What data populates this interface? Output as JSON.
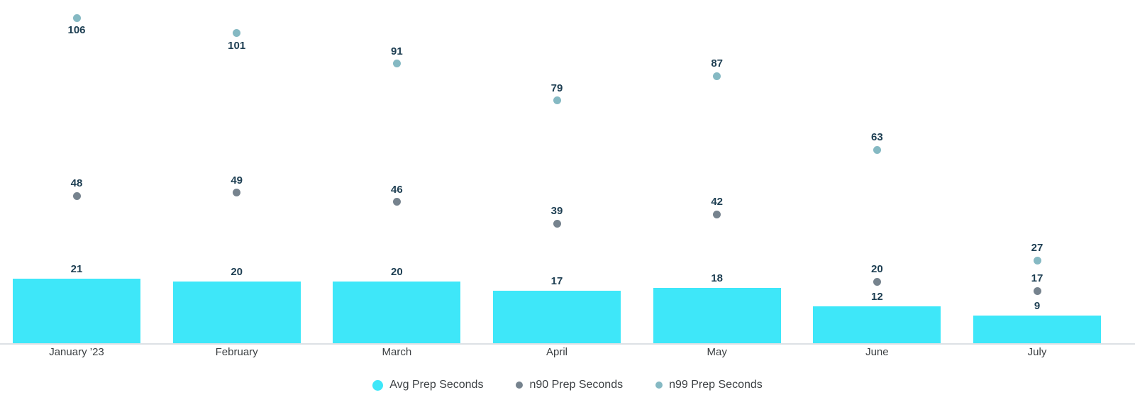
{
  "chart_data": {
    "type": "bar",
    "subtype": "combo-bar-with-point-series",
    "title": "",
    "xlabel": "",
    "ylabel": "",
    "categories": [
      "January ’23",
      "February",
      "March",
      "April",
      "May",
      "June",
      "July"
    ],
    "series": [
      {
        "name": "Avg Prep Seconds",
        "render": "bar",
        "color": "#3EE7F9",
        "values": [
          21,
          20,
          20,
          17,
          18,
          12,
          9
        ]
      },
      {
        "name": "n90 Prep Seconds",
        "render": "point",
        "color": "#76838E",
        "values": [
          48,
          49,
          46,
          39,
          42,
          20,
          17
        ]
      },
      {
        "name": "n99 Prep Seconds",
        "render": "point",
        "color": "#85B9C3",
        "values": [
          106,
          101,
          91,
          79,
          87,
          63,
          27
        ],
        "label_below_point": [
          true,
          true,
          false,
          false,
          false,
          false,
          false
        ]
      }
    ],
    "ylim": [
      0,
      112
    ],
    "grid": false,
    "y_axis": "hidden",
    "data_labels": "all",
    "data_label_color": "#1D3E52",
    "axis_text_color": "#3C4043",
    "axis_line_color": "#DDE1E5",
    "legend_position": "bottom-center",
    "background": "#FFFFFF"
  }
}
